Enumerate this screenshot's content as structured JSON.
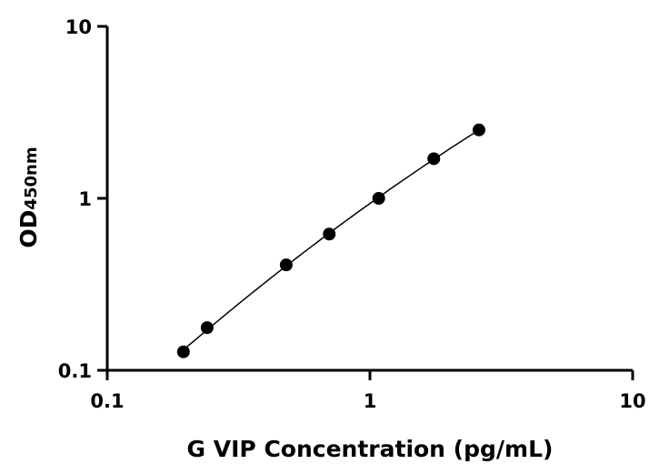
{
  "chart_data": {
    "type": "scatter",
    "xlabel": "G VIP Concentration (pg/mL)",
    "ylabel_main": "OD",
    "ylabel_sub": "450nm",
    "x_scale": "log",
    "y_scale": "log",
    "xlim": [
      0.1,
      10
    ],
    "ylim": [
      0.1,
      10
    ],
    "x_ticks": [
      0.1,
      1,
      10
    ],
    "x_tick_labels": [
      "0.1",
      "1",
      "10"
    ],
    "y_ticks": [
      0.1,
      1,
      10
    ],
    "y_tick_labels": [
      "0.1",
      "1",
      "10"
    ],
    "grid": false,
    "series": [
      {
        "x": [
          0.195,
          0.24,
          0.48,
          0.7,
          1.08,
          1.75,
          2.6
        ],
        "y": [
          0.128,
          0.177,
          0.41,
          0.62,
          1.0,
          1.7,
          2.5
        ],
        "marker": "circle",
        "fit_curve": true
      }
    ],
    "color": "#000000"
  }
}
